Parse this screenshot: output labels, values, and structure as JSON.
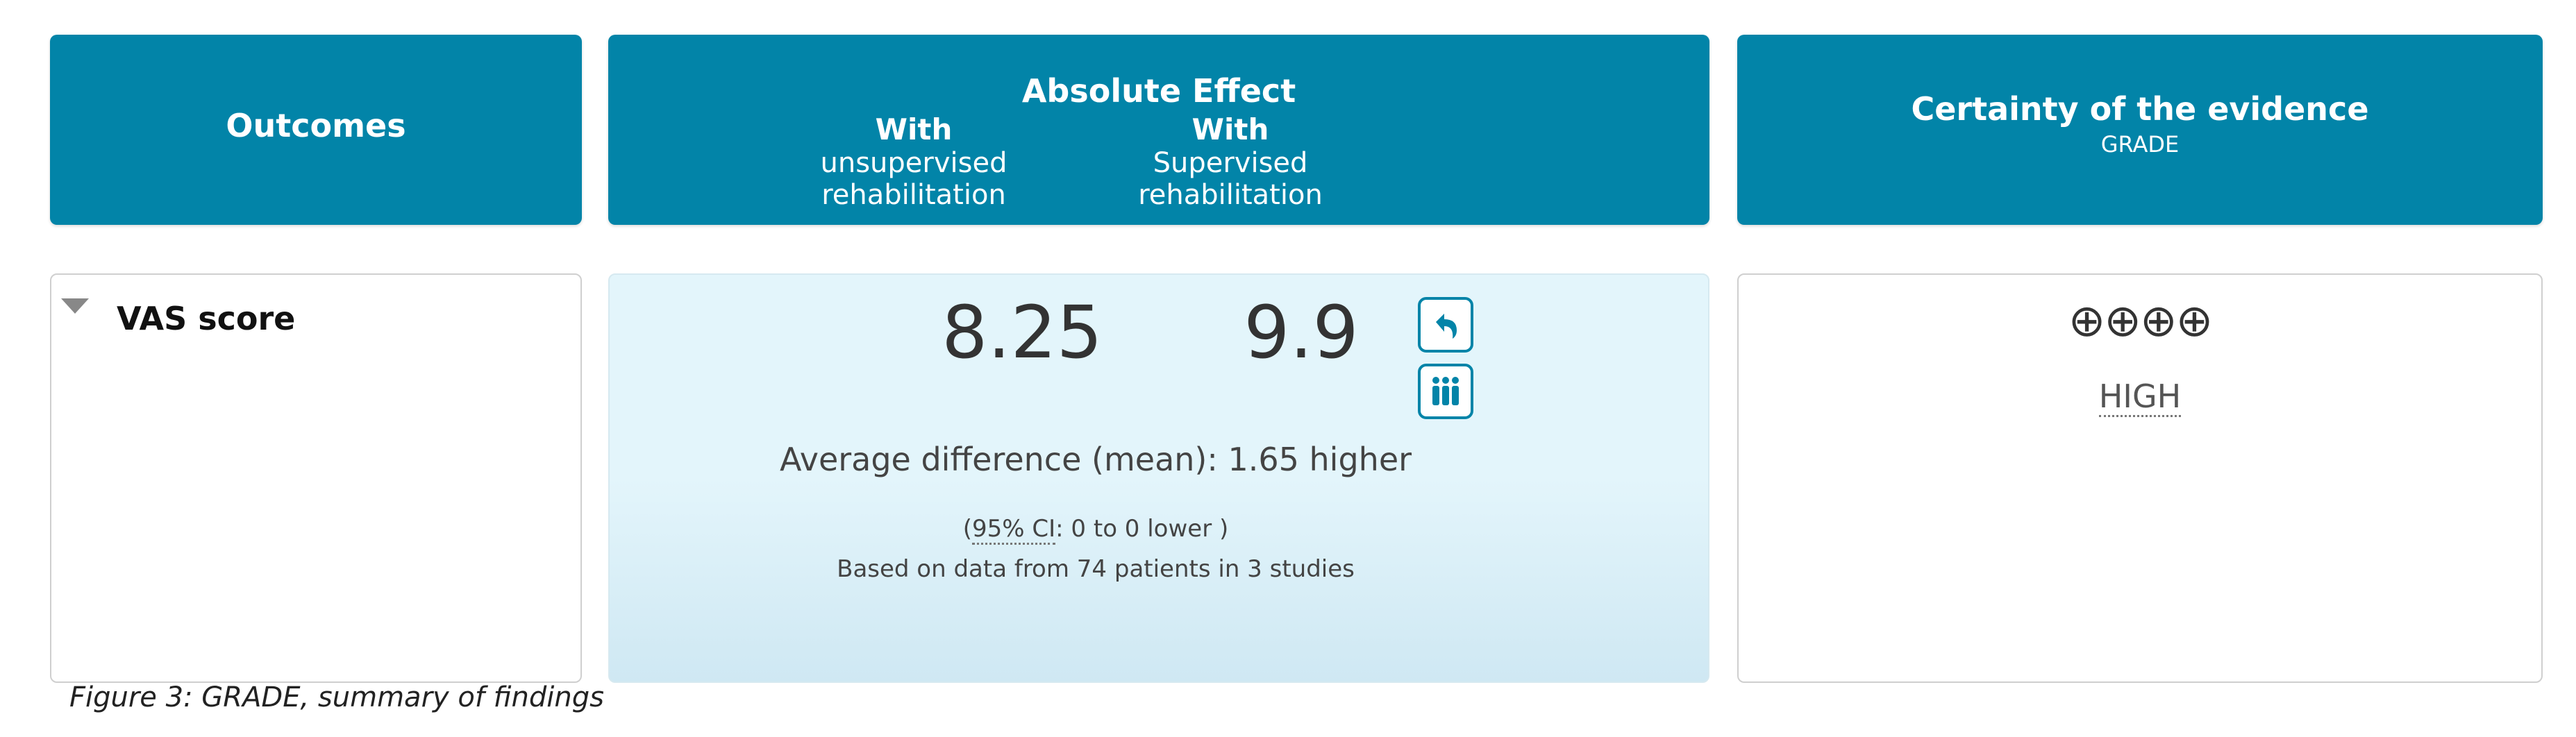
{
  "header": {
    "outcomes": "Outcomes",
    "absolute_effect": "Absolute Effect",
    "with_a": "With",
    "group_a": "unsupervised rehabilitation",
    "with_b": "With",
    "group_b": "Supervised rehabilitation",
    "certainty": "Certainty of the evidence",
    "grade": "GRADE"
  },
  "row": {
    "outcome": "VAS score",
    "value_unsupervised": "8.25",
    "value_supervised": "9.9",
    "avg_difference": "Average difference (mean): 1.65 higher",
    "ci_open": "(",
    "ci_abbr": "95% CI",
    "ci_rest": ": 0 to 0 lower )",
    "based_on": "Based on data from 74 patients in 3 studies",
    "grade_symbols": "⊕⊕⊕⊕",
    "grade_level": "HIGH"
  },
  "caption": "Figure 3: GRADE, summary of findings",
  "icons": [
    "collapse-triangle-icon",
    "undo-arrow-icon",
    "people-group-icon"
  ],
  "colors": {
    "header_bg": "#0284a8",
    "effect_bg": "#e3f5fb"
  }
}
